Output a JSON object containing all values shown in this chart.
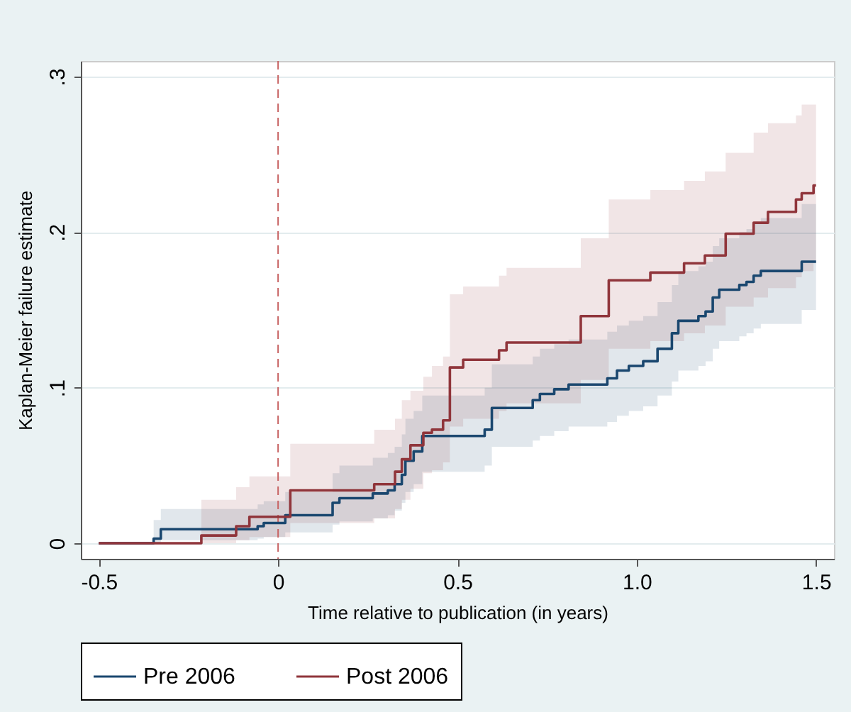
{
  "chart_data": {
    "type": "step",
    "xlabel": "Time relative to publication (in years)",
    "ylabel": "Kaplan-Meier failure estimate",
    "xlim": [
      -0.55,
      1.55
    ],
    "ylim": [
      -0.01,
      0.31
    ],
    "xticks": [
      -0.5,
      0,
      0.5,
      {
        "value": 1,
        "label": "1.0"
      },
      1.5
    ],
    "yticks": [
      {
        "value": 0,
        "label": "0"
      },
      {
        "value": 0.1,
        "label": ".1"
      },
      {
        "value": 0.2,
        "label": ".2"
      },
      {
        "value": 0.3,
        "label": ".3"
      }
    ],
    "grid": "y",
    "legend": "bottom",
    "ref_lines": [
      {
        "axis": "x",
        "value": 0,
        "color": "#c86464",
        "line_style": "dashed"
      }
    ],
    "series": [
      {
        "name": "Pre 2006",
        "color": "#1a476f",
        "x": [
          -0.5,
          -0.347,
          -0.327,
          -0.057,
          -0.04,
          0.02,
          0.152,
          0.171,
          0.264,
          0.306,
          0.325,
          0.345,
          0.355,
          0.378,
          0.402,
          0.576,
          0.596,
          0.71,
          0.73,
          0.77,
          0.81,
          0.918,
          0.945,
          0.978,
          1.018,
          1.058,
          1.098,
          1.116,
          1.172,
          1.192,
          1.212,
          1.23,
          1.286,
          1.306,
          1.326,
          1.346,
          1.46,
          1.5
        ],
        "values": [
          0,
          0.003,
          0.009,
          0.011,
          0.013,
          0.018,
          0.026,
          0.029,
          0.032,
          0.034,
          0.038,
          0.044,
          0.053,
          0.059,
          0.069,
          0.073,
          0.087,
          0.092,
          0.096,
          0.099,
          0.102,
          0.106,
          0.111,
          0.114,
          0.117,
          0.125,
          0.135,
          0.143,
          0.146,
          0.149,
          0.158,
          0.163,
          0.166,
          0.168,
          0.172,
          0.175,
          0.181,
          0.181
        ],
        "lower": [
          0,
          0,
          0.002,
          0.003,
          0.004,
          0.007,
          0.012,
          0.014,
          0.016,
          0.018,
          0.021,
          0.026,
          0.033,
          0.038,
          0.046,
          0.05,
          0.062,
          0.066,
          0.069,
          0.072,
          0.075,
          0.078,
          0.082,
          0.085,
          0.088,
          0.095,
          0.104,
          0.111,
          0.114,
          0.117,
          0.125,
          0.13,
          0.133,
          0.135,
          0.138,
          0.141,
          0.15,
          0.15
        ],
        "upper": [
          0,
          0.015,
          0.022,
          0.025,
          0.027,
          0.033,
          0.045,
          0.05,
          0.055,
          0.058,
          0.062,
          0.07,
          0.08,
          0.085,
          0.095,
          0.1,
          0.115,
          0.12,
          0.125,
          0.128,
          0.131,
          0.136,
          0.14,
          0.143,
          0.146,
          0.155,
          0.166,
          0.175,
          0.178,
          0.181,
          0.191,
          0.196,
          0.2,
          0.202,
          0.206,
          0.209,
          0.218,
          0.218
        ]
      },
      {
        "name": "Post 2006",
        "color": "#90353b",
        "x": [
          -0.5,
          -0.214,
          -0.117,
          -0.08,
          0.034,
          0.268,
          0.326,
          0.345,
          0.369,
          0.405,
          0.429,
          0.46,
          0.479,
          0.516,
          0.616,
          0.637,
          0.844,
          0.922,
          1.038,
          1.132,
          1.19,
          1.248,
          1.326,
          1.366,
          1.444,
          1.46,
          1.493,
          1.5
        ],
        "values": [
          0,
          0.005,
          0.011,
          0.017,
          0.034,
          0.038,
          0.046,
          0.054,
          0.063,
          0.071,
          0.073,
          0.079,
          0.113,
          0.118,
          0.124,
          0.129,
          0.146,
          0.169,
          0.174,
          0.18,
          0.185,
          0.199,
          0.206,
          0.213,
          0.221,
          0.225,
          0.23,
          0.23
        ],
        "lower": [
          0,
          0,
          0.002,
          0.004,
          0.013,
          0.016,
          0.022,
          0.028,
          0.035,
          0.045,
          0.047,
          0.052,
          0.075,
          0.08,
          0.085,
          0.09,
          0.105,
          0.125,
          0.13,
          0.135,
          0.14,
          0.152,
          0.158,
          0.164,
          0.171,
          0.175,
          0.18,
          0.18
        ],
        "upper": [
          0,
          0.028,
          0.036,
          0.043,
          0.064,
          0.073,
          0.08,
          0.092,
          0.098,
          0.107,
          0.114,
          0.12,
          0.16,
          0.165,
          0.172,
          0.177,
          0.196,
          0.221,
          0.227,
          0.233,
          0.239,
          0.251,
          0.264,
          0.27,
          0.275,
          0.282,
          0.282,
          0.282
        ]
      }
    ]
  }
}
